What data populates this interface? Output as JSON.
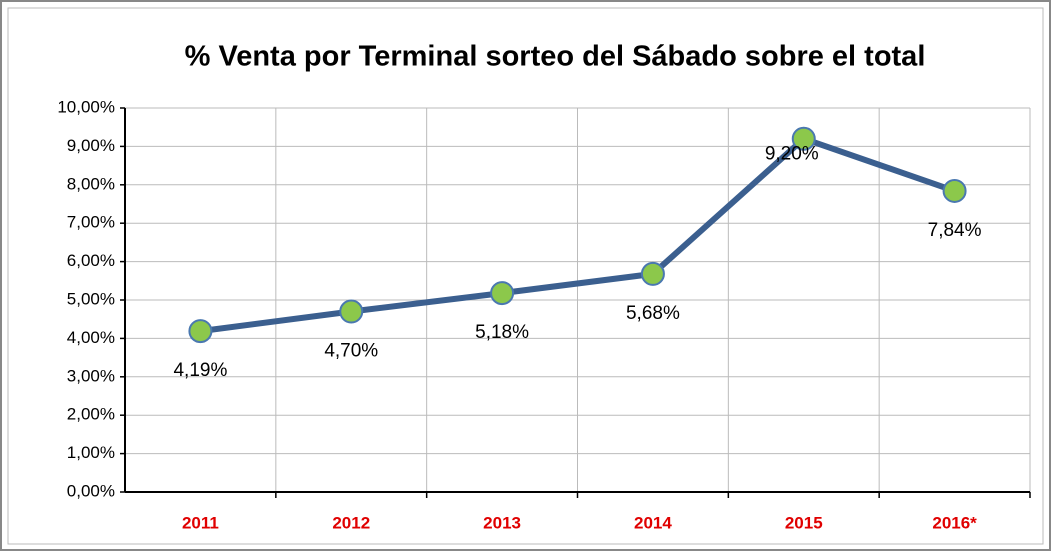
{
  "chart_data": {
    "type": "line",
    "title": "% Venta  por Terminal sorteo del Sábado sobre el total",
    "categories": [
      "2011",
      "2012",
      "2013",
      "2014",
      "2015",
      "2016*"
    ],
    "series": [
      {
        "name": "% Venta",
        "color": "#3b5f8f",
        "marker_color": "#8cc84b",
        "values": [
          4.19,
          4.7,
          5.18,
          5.68,
          9.2,
          7.84
        ],
        "value_labels": [
          "4,19%",
          "4,70%",
          "5,18%",
          "5,68%",
          "9,20%",
          "7,84%"
        ]
      }
    ],
    "ylim": [
      0,
      10
    ],
    "yticks": [
      {
        "value": 0,
        "label": "0,00%"
      },
      {
        "value": 1,
        "label": "1,00%"
      },
      {
        "value": 2,
        "label": "2,00%"
      },
      {
        "value": 3,
        "label": "3,00%"
      },
      {
        "value": 4,
        "label": "4,00%"
      },
      {
        "value": 5,
        "label": "5,00%"
      },
      {
        "value": 6,
        "label": "6,00%"
      },
      {
        "value": 7,
        "label": "7,00%"
      },
      {
        "value": 8,
        "label": "8,00%"
      },
      {
        "value": 9,
        "label": "9,00%"
      },
      {
        "value": 10,
        "label": "10,00%"
      }
    ],
    "grid": true
  }
}
